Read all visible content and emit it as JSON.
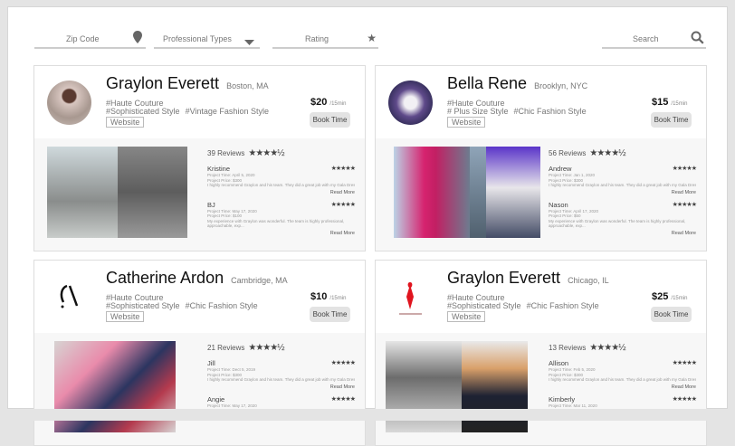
{
  "filters": {
    "zip_placeholder": "Zip Code",
    "professional_types": "Professional Types",
    "rating": "Rating",
    "search_placeholder": "Search"
  },
  "cards": [
    {
      "name": "Graylon Everett",
      "location": "Boston, MA",
      "tags": [
        "#Haute Couture",
        "#Sophisticated Style",
        "#Vintage Fashion Style"
      ],
      "website": "Website",
      "price": "$20",
      "per": "/15min",
      "book": "Book Time",
      "reviews_count": "39 Reviews",
      "rating_stars": "★★★★½",
      "reviews": [
        {
          "name": "Kristine",
          "stars": "★★★★★",
          "time": "Project Time: April 5, 2020",
          "price": "Project Price: $300",
          "text": "I highly recommend Graylon and his team. They did a great job with my Gala Dress for an event...",
          "more": "Read More"
        },
        {
          "name": "BJ",
          "stars": "★★★★★",
          "time": "Project Time: May 17, 2020",
          "price": "Project Price: $100",
          "text": "My experience with Graylon was wonderful. The team is highly professional, approachable, exp...",
          "more": "Read More"
        }
      ]
    },
    {
      "name": "Bella Rene",
      "location": "Brooklyn,  NYC",
      "tags": [
        "#Haute Couture",
        "# Plus Size Style",
        "#Chic Fashion Style"
      ],
      "website": "Website",
      "price": "$15",
      "per": "/15min",
      "book": "Book Time",
      "reviews_count": "56 Reviews",
      "rating_stars": "★★★★½",
      "reviews": [
        {
          "name": "Andrew",
          "stars": "★★★★★",
          "time": "Project Time: Jan 1, 2020",
          "price": "Project Price: $300",
          "text": "I highly recommend Graylon and his team. They did a great job with my Gala Dress for an event...",
          "more": "Read More"
        },
        {
          "name": "Nason",
          "stars": "★★★★★",
          "time": "Project Time: April 17, 2020",
          "price": "Project Price: $50",
          "text": "My experience with Graylon was wonderful. The team is highly professional, approachable, exp...",
          "more": "Read More"
        }
      ]
    },
    {
      "name": "Catherine Ardon",
      "location": "Cambridge, MA",
      "tags": [
        "#Haute Couture",
        "#Sophisticated Style",
        "#Chic Fashion Style"
      ],
      "website": "Website",
      "price": "$10",
      "per": "/15min",
      "book": "Book Time",
      "reviews_count": "21 Reviews",
      "rating_stars": "★★★★½",
      "reviews": [
        {
          "name": "Jill",
          "stars": "★★★★★",
          "time": "Project Time: Dect 5, 2019",
          "price": "Project Price: $300",
          "text": "I highly recommend Graylon and his team. They did a great job with my Gala Dress for an event...",
          "more": "Read More"
        },
        {
          "name": "Angie",
          "stars": "★★★★★",
          "time": "Project Time: May 17, 2020",
          "price": "",
          "text": "",
          "more": ""
        }
      ]
    },
    {
      "name": "Graylon Everett",
      "location": "Chicago, IL",
      "tags": [
        "#Haute Couture",
        "#Sophisticated Style",
        "#Chic Fashion Style"
      ],
      "website": "Website",
      "price": "$25",
      "per": "/15min",
      "book": "Book Time",
      "reviews_count": "13 Reviews",
      "rating_stars": "★★★★½",
      "reviews": [
        {
          "name": "Allison",
          "stars": "★★★★★",
          "time": "Project Time: Feb 5, 2020",
          "price": "Project Price: $300",
          "text": "I highly recommend Graylon and his team. They did a great job with my Gala Dress for an event...",
          "more": "Read More"
        },
        {
          "name": "Kimberly",
          "stars": "★★★★★",
          "time": "Project Time: Mar 11, 2020",
          "price": "",
          "text": "",
          "more": ""
        }
      ]
    }
  ]
}
